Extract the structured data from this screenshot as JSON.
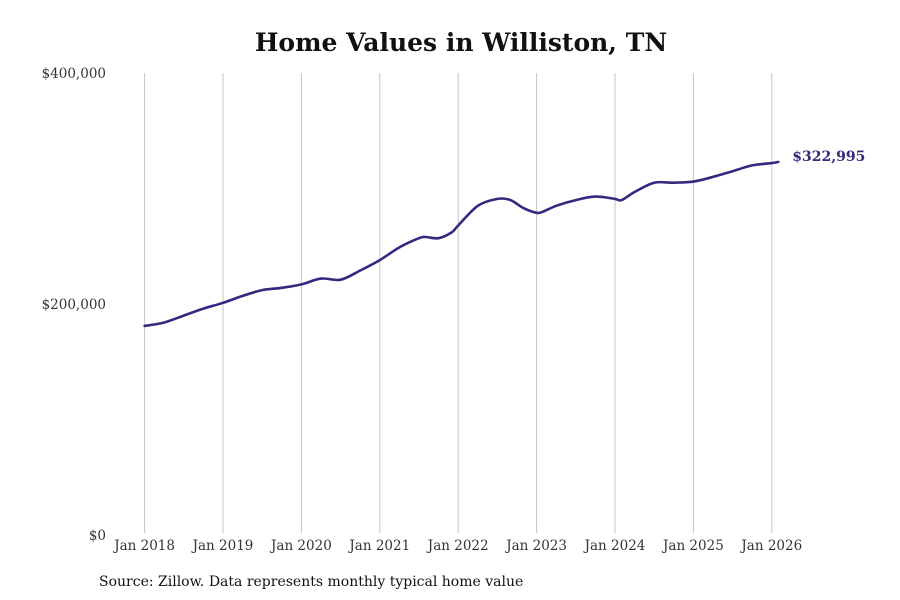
{
  "chart_data": {
    "type": "line",
    "title": "Home Values in Williston, TN",
    "xlabel": "",
    "ylabel": "",
    "ylim": [
      0,
      400000
    ],
    "y_ticks": [
      0,
      200000,
      400000
    ],
    "y_tick_labels": [
      "$0",
      "$200,000",
      "$400,000"
    ],
    "x_ticks": [
      2018,
      2019,
      2020,
      2021,
      2022,
      2023,
      2024,
      2025,
      2026
    ],
    "x_tick_labels": [
      "Jan 2018",
      "Jan 2019",
      "Jan 2020",
      "Jan 2021",
      "Jan 2022",
      "Jan 2023",
      "Jan 2024",
      "Jan 2025",
      "Jan 2026"
    ],
    "xlim": [
      2017.0,
      2027.5
    ],
    "grid": "vertical",
    "line_color": "#332a80",
    "end_label": "$322,995",
    "series": [
      {
        "name": "Typical home value",
        "x": [
          2018.0,
          2018.25,
          2018.5,
          2018.75,
          2019.0,
          2019.25,
          2019.5,
          2019.75,
          2020.0,
          2020.25,
          2020.5,
          2020.75,
          2021.0,
          2021.25,
          2021.5,
          2021.583,
          2021.75,
          2021.917,
          2022.0,
          2022.25,
          2022.5,
          2022.667,
          2022.833,
          2023.0,
          2023.083,
          2023.25,
          2023.5,
          2023.75,
          2024.0,
          2024.083,
          2024.25,
          2024.5,
          2024.75,
          2025.0,
          2025.25,
          2025.5,
          2025.75,
          2026.0,
          2026.083
        ],
        "values": [
          181000,
          184000,
          190000,
          196000,
          201000,
          207000,
          212000,
          214000,
          217000,
          222000,
          221000,
          229000,
          238000,
          249000,
          257000,
          258000,
          257000,
          262000,
          268000,
          285000,
          291000,
          290000,
          283000,
          279000,
          280000,
          285000,
          290000,
          293000,
          291000,
          290000,
          297000,
          305000,
          305000,
          306000,
          310000,
          315000,
          320000,
          322000,
          322995
        ]
      }
    ]
  },
  "source_note": "Source: Zillow. Data represents monthly typical home value"
}
